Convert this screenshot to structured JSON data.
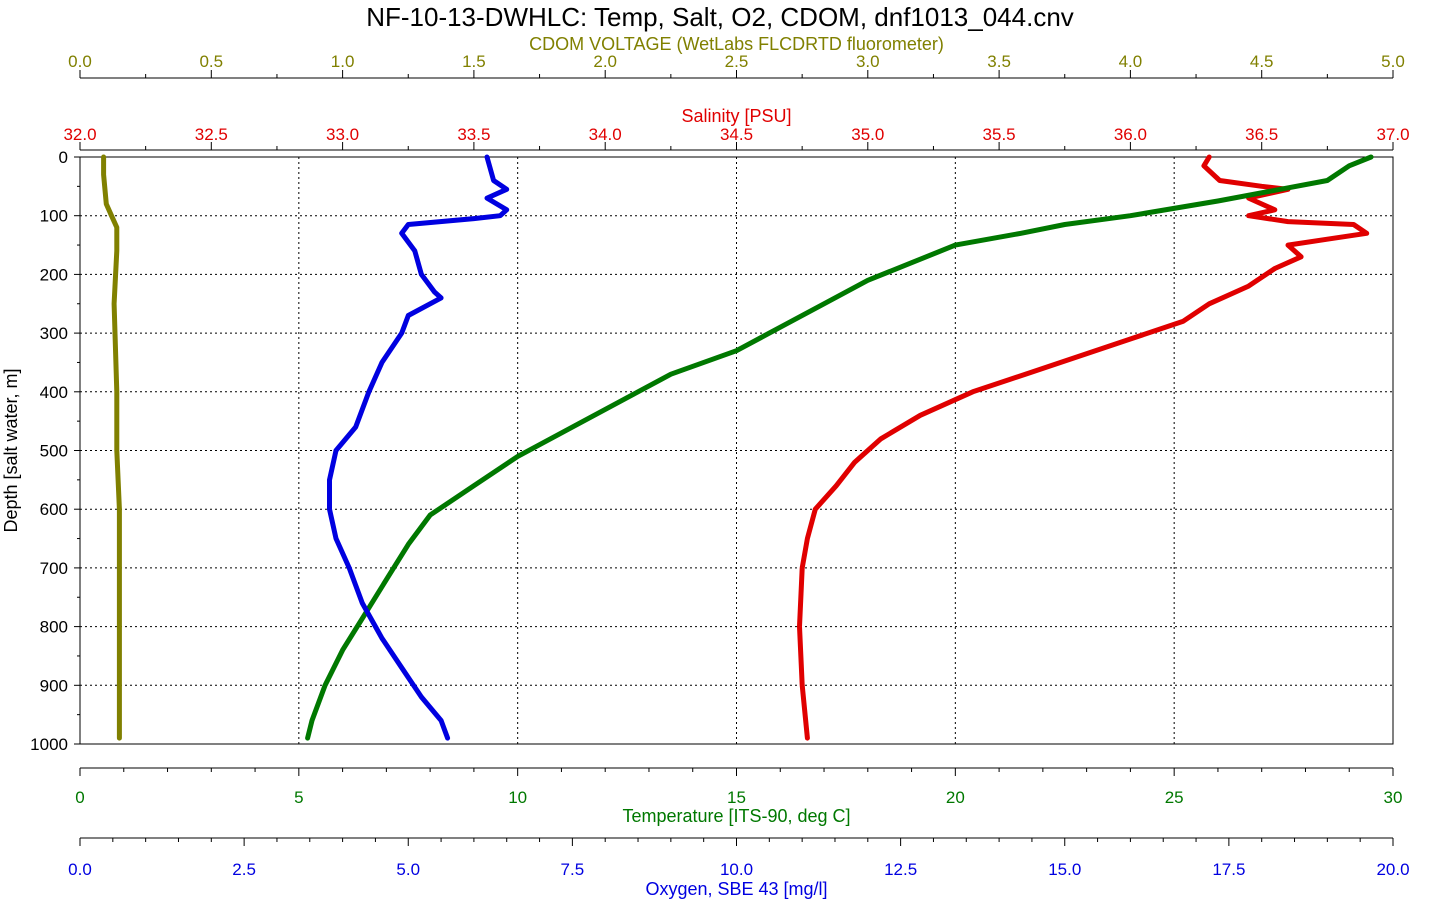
{
  "chart_data": {
    "type": "line",
    "title": "NF-10-13-DWHLC: Temp, Salt, O2, CDOM, dnf1013_044.cnv",
    "grid": true,
    "y_axis": {
      "label": "Depth [salt water, m]",
      "range": [
        0,
        1000
      ],
      "inverted": true,
      "ticks": [
        "0",
        "100",
        "200",
        "300",
        "400",
        "500",
        "600",
        "700",
        "800",
        "900",
        "1000"
      ],
      "color": "#000000"
    },
    "x_axes": [
      {
        "id": "cdom",
        "label": "CDOM VOLTAGE (WetLabs FLCDRTD fluorometer)",
        "position": "top-outer",
        "range": [
          0,
          5
        ],
        "ticks": [
          "0.0",
          "0.5",
          "1.0",
          "1.5",
          "2.0",
          "2.5",
          "3.0",
          "3.5",
          "4.0",
          "4.5",
          "5.0"
        ],
        "color": "#808000"
      },
      {
        "id": "salinity",
        "label": "Salinity [PSU]",
        "position": "top-inner",
        "range": [
          32,
          37
        ],
        "ticks": [
          "32.0",
          "32.5",
          "33.0",
          "33.5",
          "34.0",
          "34.5",
          "35.0",
          "35.5",
          "36.0",
          "36.5",
          "37.0"
        ],
        "color": "#e00000"
      },
      {
        "id": "temperature",
        "label": "Temperature [ITS-90, deg C]",
        "position": "bottom-inner",
        "range": [
          0,
          30
        ],
        "ticks": [
          "0",
          "5",
          "10",
          "15",
          "20",
          "25",
          "30"
        ],
        "color": "#007800"
      },
      {
        "id": "oxygen",
        "label": "Oxygen, SBE 43 [mg/l]",
        "position": "bottom-outer",
        "range": [
          0,
          20
        ],
        "ticks": [
          "0.0",
          "2.5",
          "5.0",
          "7.5",
          "10.0",
          "12.5",
          "15.0",
          "17.5",
          "20.0"
        ],
        "color": "#0000e0"
      }
    ],
    "series": [
      {
        "axis": "cdom",
        "color": "#808000",
        "points": [
          [
            0.09,
            0
          ],
          [
            0.09,
            30
          ],
          [
            0.1,
            80
          ],
          [
            0.12,
            100
          ],
          [
            0.14,
            120
          ],
          [
            0.14,
            160
          ],
          [
            0.13,
            250
          ],
          [
            0.14,
            400
          ],
          [
            0.14,
            500
          ],
          [
            0.15,
            600
          ],
          [
            0.15,
            700
          ],
          [
            0.15,
            800
          ],
          [
            0.15,
            900
          ],
          [
            0.15,
            990
          ]
        ]
      },
      {
        "axis": "salinity",
        "color": "#e00000",
        "points": [
          [
            36.3,
            0
          ],
          [
            36.28,
            15
          ],
          [
            36.34,
            40
          ],
          [
            36.5,
            50
          ],
          [
            36.6,
            55
          ],
          [
            36.45,
            70
          ],
          [
            36.55,
            90
          ],
          [
            36.45,
            100
          ],
          [
            36.6,
            110
          ],
          [
            36.85,
            115
          ],
          [
            36.9,
            130
          ],
          [
            36.75,
            140
          ],
          [
            36.6,
            150
          ],
          [
            36.65,
            170
          ],
          [
            36.55,
            190
          ],
          [
            36.45,
            220
          ],
          [
            36.3,
            250
          ],
          [
            36.2,
            280
          ],
          [
            36.0,
            310
          ],
          [
            35.8,
            340
          ],
          [
            35.6,
            370
          ],
          [
            35.4,
            400
          ],
          [
            35.2,
            440
          ],
          [
            35.05,
            480
          ],
          [
            34.95,
            520
          ],
          [
            34.88,
            560
          ],
          [
            34.8,
            600
          ],
          [
            34.77,
            650
          ],
          [
            34.75,
            700
          ],
          [
            34.74,
            800
          ],
          [
            34.75,
            900
          ],
          [
            34.77,
            990
          ]
        ]
      },
      {
        "axis": "temperature",
        "color": "#007800",
        "points": [
          [
            29.5,
            0
          ],
          [
            29.0,
            15
          ],
          [
            28.5,
            40
          ],
          [
            26.0,
            75
          ],
          [
            24.0,
            100
          ],
          [
            22.5,
            115
          ],
          [
            21.5,
            130
          ],
          [
            20.0,
            150
          ],
          [
            19.0,
            180
          ],
          [
            18.0,
            210
          ],
          [
            17.0,
            250
          ],
          [
            16.0,
            290
          ],
          [
            15.0,
            330
          ],
          [
            13.5,
            370
          ],
          [
            12.5,
            410
          ],
          [
            11.5,
            450
          ],
          [
            10.0,
            510
          ],
          [
            9.0,
            560
          ],
          [
            8.0,
            610
          ],
          [
            7.5,
            660
          ],
          [
            7.0,
            720
          ],
          [
            6.5,
            780
          ],
          [
            6.0,
            840
          ],
          [
            5.6,
            900
          ],
          [
            5.3,
            960
          ],
          [
            5.2,
            990
          ]
        ]
      },
      {
        "axis": "oxygen",
        "color": "#0000e0",
        "points": [
          [
            6.2,
            0
          ],
          [
            6.3,
            40
          ],
          [
            6.5,
            55
          ],
          [
            6.2,
            70
          ],
          [
            6.5,
            90
          ],
          [
            6.4,
            100
          ],
          [
            6.0,
            105
          ],
          [
            5.0,
            115
          ],
          [
            4.9,
            130
          ],
          [
            5.1,
            160
          ],
          [
            5.2,
            200
          ],
          [
            5.4,
            230
          ],
          [
            5.5,
            240
          ],
          [
            5.0,
            270
          ],
          [
            4.9,
            300
          ],
          [
            4.6,
            350
          ],
          [
            4.4,
            400
          ],
          [
            4.2,
            460
          ],
          [
            3.9,
            500
          ],
          [
            3.8,
            550
          ],
          [
            3.8,
            600
          ],
          [
            3.9,
            650
          ],
          [
            4.1,
            700
          ],
          [
            4.3,
            760
          ],
          [
            4.6,
            820
          ],
          [
            4.9,
            870
          ],
          [
            5.2,
            920
          ],
          [
            5.5,
            960
          ],
          [
            5.6,
            990
          ]
        ]
      }
    ]
  }
}
